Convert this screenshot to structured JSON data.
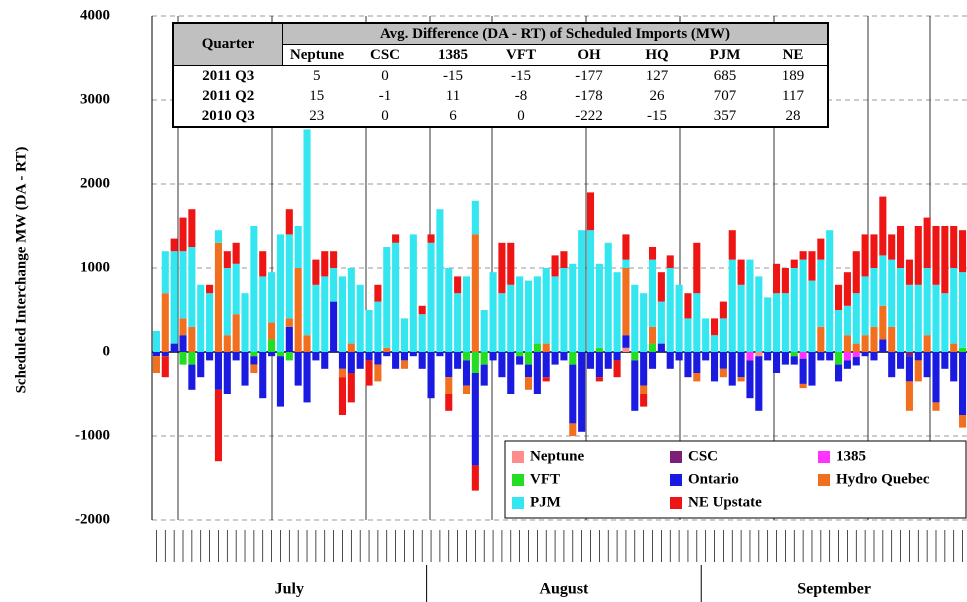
{
  "chart_data": {
    "type": "stacked_bar",
    "y_label": "Scheduled Interchange MW (DA - RT)",
    "ylim": [
      -2000,
      4000
    ],
    "yticks": [
      -2000,
      -1000,
      0,
      1000,
      2000,
      3000,
      4000
    ],
    "grid": true,
    "legend": "bottom-right",
    "months": [
      "July",
      "August",
      "September"
    ],
    "categories": [
      null,
      null,
      null,
      null,
      null,
      null,
      null,
      null,
      null,
      null,
      null,
      null,
      null,
      null,
      null,
      null,
      null,
      null,
      null,
      null,
      null,
      null,
      null,
      null,
      null,
      null,
      null,
      null,
      null,
      null,
      null,
      null,
      null,
      null,
      null,
      null,
      null,
      null,
      null,
      null,
      null,
      null,
      null,
      null,
      null,
      null,
      null,
      null,
      null,
      null,
      null,
      null,
      null,
      null,
      null,
      null,
      null,
      null,
      null,
      null,
      null,
      null,
      null,
      null,
      null,
      null,
      null,
      null,
      null,
      null,
      null,
      null,
      null,
      null,
      null,
      null,
      null,
      null,
      null,
      null,
      null,
      null,
      null,
      null,
      null,
      null,
      null,
      null,
      null,
      null,
      null,
      null
    ],
    "series": [
      {
        "name": "Neptune",
        "color": "#ff8c8c",
        "values": [
          0,
          0,
          0,
          0,
          0,
          0,
          0,
          0,
          0,
          0,
          0,
          0,
          0,
          0,
          0,
          0,
          0,
          0,
          0,
          0,
          0,
          0,
          0,
          0,
          0,
          0,
          0,
          0,
          0,
          0,
          0,
          0,
          0,
          0,
          0,
          0,
          0,
          0,
          0,
          0,
          0,
          0,
          0,
          0,
          0,
          0,
          0,
          0,
          0,
          0,
          0,
          0,
          0,
          50,
          0,
          0,
          0,
          0,
          0,
          0,
          0,
          0,
          0,
          0,
          0,
          0,
          0,
          0,
          -50,
          0,
          0,
          0,
          0,
          0,
          0,
          0,
          0,
          0,
          0,
          0,
          0,
          0,
          0,
          0,
          0,
          0,
          0,
          0,
          0,
          0,
          0,
          0
        ]
      },
      {
        "name": "CSC",
        "color": "#7b1f7b",
        "values": [
          0,
          0,
          0,
          0,
          0,
          0,
          0,
          0,
          0,
          0,
          0,
          0,
          0,
          0,
          0,
          0,
          0,
          0,
          0,
          0,
          0,
          0,
          0,
          0,
          0,
          0,
          0,
          0,
          0,
          0,
          0,
          0,
          0,
          0,
          0,
          0,
          0,
          0,
          0,
          0,
          0,
          0,
          0,
          0,
          0,
          0,
          0,
          0,
          0,
          0,
          0,
          0,
          0,
          0,
          0,
          0,
          0,
          0,
          0,
          0,
          0,
          0,
          0,
          0,
          0,
          0,
          0,
          0,
          0,
          0,
          0,
          0,
          0,
          0,
          0,
          0,
          0,
          0,
          0,
          0,
          0,
          0,
          0,
          0,
          0,
          -50,
          0,
          0,
          0,
          0,
          0,
          0
        ]
      },
      {
        "name": "1385",
        "color": "#ff33ff",
        "values": [
          0,
          0,
          0,
          0,
          0,
          0,
          0,
          0,
          0,
          0,
          0,
          0,
          0,
          0,
          0,
          0,
          0,
          0,
          0,
          0,
          0,
          0,
          0,
          0,
          0,
          0,
          0,
          0,
          0,
          0,
          0,
          0,
          0,
          0,
          0,
          0,
          0,
          0,
          0,
          0,
          0,
          0,
          0,
          0,
          0,
          0,
          0,
          0,
          0,
          0,
          0,
          0,
          0,
          0,
          0,
          0,
          0,
          0,
          0,
          0,
          0,
          0,
          0,
          0,
          0,
          0,
          0,
          -100,
          0,
          0,
          0,
          0,
          0,
          -80,
          0,
          0,
          0,
          0,
          -100,
          -60,
          0,
          0,
          0,
          0,
          0,
          0,
          0,
          0,
          0,
          0,
          0,
          0
        ]
      },
      {
        "name": "VFT",
        "color": "#22dd22",
        "values": [
          0,
          0,
          0,
          -150,
          -150,
          0,
          0,
          0,
          0,
          0,
          0,
          -50,
          0,
          150,
          -50,
          -100,
          0,
          0,
          0,
          0,
          0,
          0,
          0,
          0,
          0,
          0,
          0,
          0,
          0,
          0,
          0,
          0,
          0,
          0,
          0,
          -100,
          -250,
          -150,
          0,
          0,
          0,
          -50,
          -150,
          100,
          0,
          0,
          0,
          -150,
          0,
          0,
          50,
          0,
          0,
          0,
          -100,
          0,
          100,
          0,
          0,
          0,
          0,
          0,
          0,
          0,
          0,
          0,
          0,
          0,
          0,
          0,
          0,
          0,
          -50,
          0,
          0,
          0,
          0,
          -150,
          0,
          0,
          0,
          0,
          0,
          0,
          0,
          0,
          0,
          0,
          0,
          0,
          0,
          50
        ]
      },
      {
        "name": "Ontario",
        "color": "#1a1ae0",
        "values": [
          -50,
          -50,
          100,
          200,
          -300,
          -300,
          -100,
          -450,
          -500,
          -100,
          -400,
          -100,
          -550,
          -50,
          -600,
          300,
          -400,
          -600,
          -100,
          -200,
          600,
          -200,
          -250,
          -200,
          -100,
          -150,
          -50,
          -200,
          -100,
          -50,
          -200,
          -550,
          -50,
          -300,
          -200,
          -300,
          -1100,
          -250,
          -100,
          -300,
          -500,
          -100,
          -150,
          -500,
          -300,
          -150,
          -100,
          -700,
          -950,
          -200,
          -300,
          -200,
          -100,
          150,
          -600,
          -400,
          -200,
          100,
          -200,
          -100,
          -300,
          -250,
          -100,
          -350,
          -200,
          -400,
          -300,
          -450,
          -650,
          -100,
          -250,
          -150,
          -100,
          -300,
          -400,
          -100,
          -100,
          -200,
          -100,
          -100,
          -50,
          -100,
          150,
          -300,
          -200,
          -300,
          -100,
          -300,
          -600,
          -200,
          -350,
          -750
        ]
      },
      {
        "name": "Hydro Quebec",
        "color": "#f07020",
        "values": [
          -200,
          700,
          0,
          200,
          300,
          0,
          0,
          1300,
          200,
          450,
          0,
          -100,
          0,
          200,
          0,
          100,
          1000,
          200,
          0,
          0,
          0,
          -100,
          100,
          0,
          0,
          -200,
          50,
          0,
          -100,
          0,
          0,
          0,
          0,
          -200,
          0,
          -100,
          1400,
          0,
          0,
          0,
          0,
          0,
          -150,
          0,
          100,
          0,
          0,
          -150,
          0,
          0,
          0,
          0,
          0,
          800,
          0,
          -100,
          200,
          0,
          0,
          0,
          0,
          -100,
          0,
          0,
          -100,
          0,
          -50,
          0,
          0,
          0,
          0,
          0,
          0,
          -50,
          0,
          300,
          0,
          0,
          200,
          100,
          200,
          300,
          400,
          300,
          0,
          -350,
          -250,
          200,
          -100,
          0,
          100,
          -150
        ]
      },
      {
        "name": "PJM",
        "color": "#33e6f0",
        "values": [
          250,
          500,
          1100,
          800,
          950,
          800,
          700,
          150,
          800,
          600,
          700,
          1500,
          900,
          600,
          1400,
          1000,
          500,
          2450,
          800,
          900,
          400,
          900,
          900,
          800,
          500,
          600,
          1200,
          1300,
          400,
          1400,
          450,
          1300,
          1700,
          1000,
          700,
          900,
          400,
          500,
          950,
          700,
          800,
          900,
          850,
          800,
          900,
          900,
          1000,
          1050,
          1450,
          1450,
          1000,
          1300,
          950,
          100,
          800,
          700,
          800,
          500,
          1000,
          800,
          400,
          700,
          400,
          200,
          400,
          1100,
          800,
          1100,
          900,
          650,
          700,
          700,
          1000,
          1100,
          850,
          800,
          1450,
          500,
          350,
          600,
          700,
          700,
          600,
          800,
          1000,
          800,
          800,
          800,
          800,
          700,
          900,
          900
        ]
      },
      {
        "name": "NE Upstate",
        "color": "#ee1515",
        "values": [
          0,
          -250,
          150,
          400,
          450,
          0,
          100,
          -850,
          200,
          250,
          0,
          0,
          300,
          0,
          0,
          300,
          0,
          0,
          300,
          300,
          200,
          -450,
          -350,
          0,
          -300,
          200,
          0,
          100,
          0,
          0,
          100,
          100,
          0,
          -200,
          200,
          0,
          -300,
          0,
          0,
          600,
          500,
          0,
          0,
          0,
          -50,
          250,
          200,
          0,
          0,
          450,
          -50,
          0,
          -200,
          300,
          0,
          -150,
          150,
          350,
          150,
          0,
          300,
          600,
          0,
          200,
          200,
          350,
          300,
          0,
          0,
          0,
          350,
          300,
          100,
          100,
          350,
          250,
          0,
          300,
          400,
          500,
          500,
          400,
          700,
          300,
          500,
          300,
          700,
          600,
          700,
          800,
          500,
          500
        ]
      }
    ],
    "table": {
      "corner": "Quarter",
      "title": "Avg. Difference (DA - RT) of Scheduled Imports (MW)",
      "columns": [
        "Neptune",
        "CSC",
        "1385",
        "VFT",
        "OH",
        "HQ",
        "PJM",
        "NE"
      ],
      "rows": [
        {
          "label": "2011 Q3",
          "values": [
            5,
            0,
            -15,
            -15,
            -177,
            127,
            685,
            189
          ]
        },
        {
          "label": "2011 Q2",
          "values": [
            15,
            -1,
            11,
            -8,
            -178,
            26,
            707,
            117
          ]
        },
        {
          "label": "2010 Q3",
          "values": [
            23,
            0,
            6,
            0,
            -222,
            -15,
            357,
            28
          ]
        }
      ]
    }
  }
}
